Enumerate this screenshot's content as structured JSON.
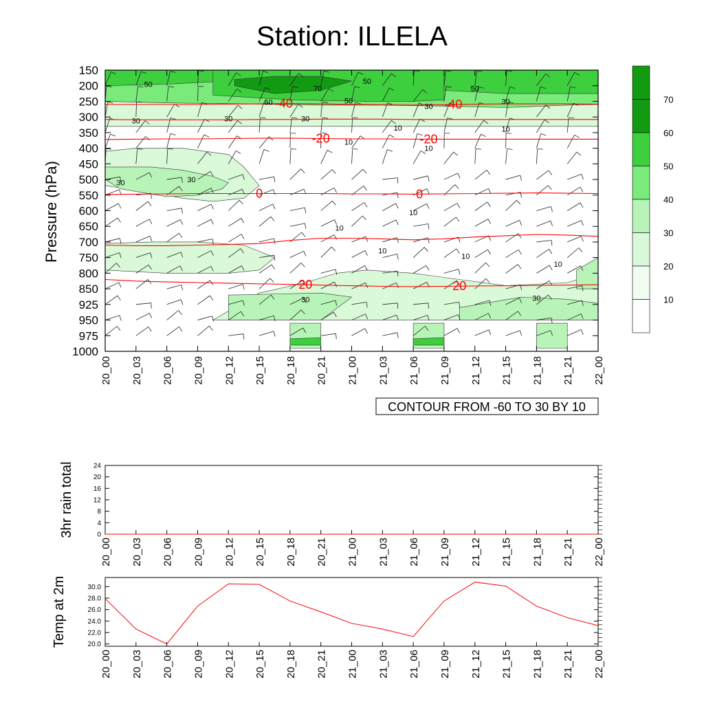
{
  "title": "Station: ILLELA",
  "colors": {
    "temp_contour": "#ff0000",
    "rh_contour": "#000000",
    "shade_levels": [
      "#ffffff",
      "#f2fdf2",
      "#d9f9d9",
      "#b8f4b8",
      "#7aeb7a",
      "#3dcf3d",
      "#129a12"
    ]
  },
  "chart_data": [
    {
      "id": "cross-section",
      "type": "heatmap",
      "ylabel": "Pressure (hPa)",
      "xlabel": "",
      "x": [
        "20_00",
        "20_03",
        "20_06",
        "20_09",
        "20_12",
        "20_15",
        "20_18",
        "20_21",
        "21_00",
        "21_03",
        "21_06",
        "21_09",
        "21_12",
        "21_15",
        "21_18",
        "21_21",
        "22_00"
      ],
      "pressure_levels": [
        150,
        200,
        250,
        300,
        350,
        400,
        450,
        500,
        550,
        600,
        650,
        700,
        750,
        800,
        850,
        925,
        950,
        975,
        1000
      ],
      "ylim": [
        150,
        1000
      ],
      "info_label": "CONTOUR FROM -60 TO 30 BY 10",
      "colorbar": {
        "levels": [
          10,
          20,
          30,
          40,
          50,
          60,
          70
        ]
      },
      "temperature_contours": [
        {
          "value": "-40",
          "levels": [
            260,
            260,
            260,
            260,
            259,
            258,
            257,
            258,
            260,
            261,
            262,
            261,
            259,
            258,
            258,
            258,
            259
          ],
          "labels": [
            5.8,
            11.3
          ]
        },
        {
          "value": "-20",
          "levels": [
            372,
            371,
            370,
            370,
            369,
            368,
            368,
            369,
            370,
            370,
            371,
            371,
            371,
            371,
            371,
            371,
            371
          ],
          "labels": [
            7.0,
            10.5
          ]
        },
        {
          "value": "0",
          "levels": [
            548,
            547,
            546,
            545,
            545,
            545,
            545,
            545,
            546,
            546,
            547,
            546,
            545,
            544,
            543,
            544,
            545
          ],
          "labels": [
            5.0,
            10.2
          ]
        },
        {
          "value": "20",
          "levels": [
            820,
            825,
            828,
            830,
            832,
            834,
            836,
            838,
            840,
            842,
            843,
            842,
            841,
            840,
            839,
            838,
            837
          ],
          "labels": [
            6.5,
            11.5
          ]
        },
        {
          "value": "",
          "levels": [
            710,
            712,
            712,
            710,
            708,
            705,
            695,
            688,
            688,
            690,
            693,
            690,
            684,
            680,
            676,
            678,
            682
          ],
          "labels": []
        },
        {
          "value": "",
          "levels": [
            308,
            309,
            309,
            309,
            309,
            308,
            308,
            307,
            307,
            307,
            308,
            308,
            308,
            308,
            308,
            308,
            308
          ],
          "labels": []
        }
      ],
      "rh_shading": [
        {
          "level": 20,
          "x": [
            0,
            4.5,
            6.5,
            8,
            9.5,
            11,
            12.5,
            14,
            16,
            16,
            14,
            12,
            10,
            8,
            6,
            4.5,
            0
          ],
          "p": [
            150,
            150,
            150,
            150,
            150,
            150,
            150,
            150,
            150,
            330,
            330,
            330,
            330,
            330,
            330,
            330,
            330
          ]
        },
        {
          "level": 40,
          "x": [
            0,
            2,
            4.5,
            7,
            9,
            11,
            13,
            15,
            16,
            16,
            15,
            13,
            11,
            9,
            7,
            4.5,
            2,
            0
          ],
          "p": [
            150,
            150,
            150,
            150,
            150,
            150,
            150,
            150,
            150,
            260,
            262,
            270,
            265,
            262,
            262,
            258,
            255,
            250
          ]
        },
        {
          "level": 50,
          "x": [
            0,
            2,
            4,
            4,
            2,
            0
          ],
          "p": [
            150,
            150,
            150,
            185,
            195,
            200
          ]
        },
        {
          "level": 50,
          "x": [
            3.5,
            6,
            8.5,
            10,
            11,
            11,
            10,
            8.5,
            6,
            3.5
          ],
          "p": [
            150,
            150,
            150,
            150,
            150,
            245,
            250,
            250,
            245,
            230
          ]
        },
        {
          "level": 50,
          "x": [
            11,
            13,
            16,
            16,
            13,
            11
          ],
          "p": [
            150,
            150,
            150,
            225,
            225,
            215
          ]
        },
        {
          "level": 70,
          "x": [
            4.2,
            5.5,
            7,
            8,
            7,
            5.5,
            4.2
          ],
          "p": [
            180,
            170,
            170,
            185,
            215,
            225,
            200
          ]
        },
        {
          "level": 20,
          "x": [
            0,
            1,
            2.5,
            4,
            4.5,
            5,
            4.5,
            3.5,
            2.5,
            1.5,
            0
          ],
          "p": [
            410,
            400,
            400,
            420,
            460,
            520,
            560,
            570,
            560,
            540,
            520
          ]
        },
        {
          "level": 30,
          "x": [
            0,
            1.5,
            2.5,
            3.5,
            4,
            3.8,
            3,
            2,
            0.5,
            0
          ],
          "p": [
            460,
            460,
            470,
            490,
            510,
            530,
            550,
            555,
            530,
            500
          ]
        },
        {
          "level": 20,
          "x": [
            0,
            1.5,
            3,
            4.5,
            5.5,
            5,
            4,
            2,
            0
          ],
          "p": [
            705,
            700,
            700,
            710,
            750,
            790,
            800,
            800,
            790
          ]
        },
        {
          "level": 20,
          "x": [
            3.5,
            5,
            6.5,
            7.5,
            8.5,
            10,
            11.5,
            13,
            15,
            16,
            16,
            13,
            10,
            7,
            3.5
          ],
          "p": [
            950,
            870,
            830,
            800,
            790,
            800,
            820,
            840,
            830,
            800,
            950,
            950,
            950,
            950,
            950
          ]
        },
        {
          "level": 30,
          "x": [
            4,
            7,
            8,
            7,
            4
          ],
          "p": [
            880,
            870,
            890,
            950,
            950
          ]
        },
        {
          "level": 30,
          "x": [
            11.5,
            13.5,
            15,
            16,
            16,
            14,
            11.5
          ],
          "p": [
            930,
            890,
            900,
            920,
            950,
            950,
            950
          ]
        },
        {
          "level": 30,
          "x": [
            15.3,
            16,
            16,
            15.3
          ],
          "p": [
            790,
            750,
            850,
            850
          ]
        },
        {
          "level": 30,
          "x": [
            6,
            7,
            7,
            6
          ],
          "p": [
            955,
            955,
            995,
            995
          ]
        },
        {
          "level": 30,
          "x": [
            10,
            11,
            11,
            10
          ],
          "p": [
            955,
            955,
            995,
            995
          ]
        },
        {
          "level": 30,
          "x": [
            14,
            15,
            15,
            14
          ],
          "p": [
            955,
            955,
            995,
            995
          ]
        },
        {
          "level": 50,
          "x": [
            6,
            7,
            7,
            6
          ],
          "p": [
            980,
            978,
            990,
            990
          ]
        },
        {
          "level": 50,
          "x": [
            10,
            11,
            11,
            10
          ],
          "p": [
            980,
            978,
            990,
            990
          ]
        }
      ],
      "rh_contour_labels": [
        {
          "text": "50",
          "x": 1.4,
          "p": 195
        },
        {
          "text": "70",
          "x": 6.9,
          "p": 208
        },
        {
          "text": "50",
          "x": 8.5,
          "p": 185
        },
        {
          "text": "50",
          "x": 12,
          "p": 208
        },
        {
          "text": "50",
          "x": 5.3,
          "p": 252
        },
        {
          "text": "50",
          "x": 7.9,
          "p": 248
        },
        {
          "text": "30",
          "x": 10.5,
          "p": 265
        },
        {
          "text": "30",
          "x": 13,
          "p": 250
        },
        {
          "text": "30",
          "x": 1,
          "p": 312
        },
        {
          "text": "30",
          "x": 4,
          "p": 305
        },
        {
          "text": "30",
          "x": 6.5,
          "p": 305
        },
        {
          "text": "10",
          "x": 9.5,
          "p": 335
        },
        {
          "text": "10",
          "x": 13,
          "p": 338
        },
        {
          "text": "10",
          "x": 7.9,
          "p": 380
        },
        {
          "text": "10",
          "x": 10.5,
          "p": 400
        },
        {
          "text": "30",
          "x": 0.5,
          "p": 510
        },
        {
          "text": "30",
          "x": 2.8,
          "p": 500
        },
        {
          "text": "10",
          "x": 10.0,
          "p": 605
        },
        {
          "text": "10",
          "x": 7.6,
          "p": 655
        },
        {
          "text": "10",
          "x": 9.0,
          "p": 728
        },
        {
          "text": "10",
          "x": 11.7,
          "p": 745
        },
        {
          "text": "10",
          "x": 14.7,
          "p": 770
        },
        {
          "text": "30",
          "x": 6.5,
          "p": 900
        },
        {
          "text": "30",
          "x": 14.0,
          "p": 895
        }
      ]
    },
    {
      "id": "rain",
      "type": "line",
      "ylabel": "3hr rain total",
      "x": [
        "20_00",
        "20_03",
        "20_06",
        "20_09",
        "20_12",
        "20_15",
        "20_18",
        "20_21",
        "21_00",
        "21_03",
        "21_06",
        "21_09",
        "21_12",
        "21_15",
        "21_18",
        "21_21",
        "22_00"
      ],
      "values": [
        0,
        0,
        0,
        0,
        0,
        0,
        0,
        0,
        0,
        0,
        0,
        0,
        0,
        0,
        0,
        0,
        0
      ],
      "ylim": [
        0,
        24
      ],
      "yticks": [
        "0",
        "4",
        "8",
        "12",
        "16",
        "20",
        "24"
      ]
    },
    {
      "id": "temp2m",
      "type": "line",
      "ylabel": "Temp at 2m",
      "x": [
        "20_00",
        "20_03",
        "20_06",
        "20_09",
        "20_12",
        "20_15",
        "20_18",
        "20_21",
        "21_00",
        "21_03",
        "21_06",
        "21_09",
        "21_12",
        "21_15",
        "21_18",
        "21_21",
        "22_00"
      ],
      "values": [
        27.9,
        22.6,
        20.0,
        26.6,
        30.5,
        30.4,
        27.5,
        25.6,
        23.6,
        22.6,
        21.3,
        27.5,
        30.8,
        30.1,
        26.6,
        24.6,
        23.2
      ],
      "ylim": [
        19.6,
        31.6
      ],
      "yticks": [
        "20.0",
        "22.0",
        "24.0",
        "26.0",
        "28.0",
        "30.0"
      ]
    }
  ]
}
